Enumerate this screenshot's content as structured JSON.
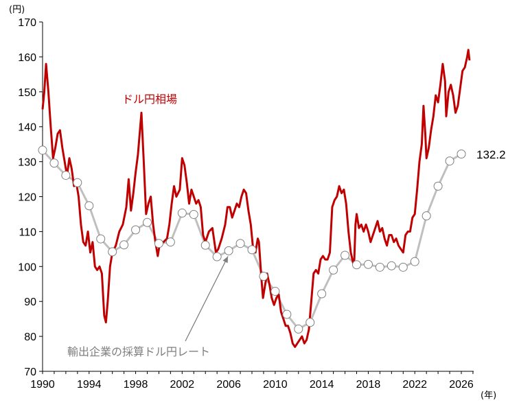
{
  "chart_data": {
    "type": "line",
    "y_unit_label": "(円)",
    "x_unit_label": "(年)",
    "xlim": [
      1990,
      2027
    ],
    "ylim": [
      70,
      170
    ],
    "x_ticks": [
      "1990",
      "1994",
      "1998",
      "2002",
      "2006",
      "2010",
      "2014",
      "2018",
      "2022",
      "2026"
    ],
    "y_ticks": [
      "70",
      "80",
      "90",
      "100",
      "110",
      "120",
      "130",
      "140",
      "150",
      "160",
      "170"
    ],
    "grid": false,
    "colors": {
      "spot": "#c00000",
      "breakeven_line": "#bfbfbf",
      "breakeven_marker_edge": "#7f7f7f",
      "axis": "#000000"
    },
    "series": [
      {
        "name": "ドル円相場",
        "points": [
          [
            1990.0,
            145
          ],
          [
            1990.15,
            150
          ],
          [
            1990.3,
            158
          ],
          [
            1990.5,
            150
          ],
          [
            1990.7,
            140
          ],
          [
            1990.9,
            131
          ],
          [
            1991.1,
            134
          ],
          [
            1991.3,
            138
          ],
          [
            1991.5,
            139
          ],
          [
            1991.7,
            134
          ],
          [
            1991.9,
            130
          ],
          [
            1992.1,
            126
          ],
          [
            1992.3,
            131
          ],
          [
            1992.5,
            128
          ],
          [
            1992.7,
            123
          ],
          [
            1992.9,
            124
          ],
          [
            1993.1,
            120
          ],
          [
            1993.3,
            112
          ],
          [
            1993.5,
            107
          ],
          [
            1993.7,
            106
          ],
          [
            1993.9,
            110
          ],
          [
            1994.1,
            104
          ],
          [
            1994.3,
            107
          ],
          [
            1994.5,
            100
          ],
          [
            1994.7,
            99
          ],
          [
            1994.9,
            100
          ],
          [
            1995.1,
            98
          ],
          [
            1995.3,
            86
          ],
          [
            1995.45,
            84
          ],
          [
            1995.6,
            90
          ],
          [
            1995.8,
            100
          ],
          [
            1996.0,
            104
          ],
          [
            1996.3,
            106
          ],
          [
            1996.6,
            110
          ],
          [
            1996.9,
            112
          ],
          [
            1997.2,
            117
          ],
          [
            1997.4,
            125
          ],
          [
            1997.6,
            116
          ],
          [
            1997.8,
            121
          ],
          [
            1998.0,
            127
          ],
          [
            1998.2,
            132
          ],
          [
            1998.5,
            144
          ],
          [
            1998.7,
            130
          ],
          [
            1998.9,
            115
          ],
          [
            1999.1,
            118
          ],
          [
            1999.3,
            120
          ],
          [
            1999.5,
            112
          ],
          [
            1999.7,
            107
          ],
          [
            1999.9,
            103
          ],
          [
            2000.1,
            107
          ],
          [
            2000.4,
            107
          ],
          [
            2000.7,
            108
          ],
          [
            2000.9,
            112
          ],
          [
            2001.1,
            118
          ],
          [
            2001.3,
            123
          ],
          [
            2001.5,
            120
          ],
          [
            2001.8,
            122
          ],
          [
            2002.0,
            131
          ],
          [
            2002.2,
            129
          ],
          [
            2002.4,
            124
          ],
          [
            2002.6,
            118
          ],
          [
            2002.8,
            122
          ],
          [
            2003.0,
            120
          ],
          [
            2003.2,
            118
          ],
          [
            2003.4,
            119
          ],
          [
            2003.6,
            117
          ],
          [
            2003.8,
            109
          ],
          [
            2004.0,
            107
          ],
          [
            2004.3,
            110
          ],
          [
            2004.6,
            111
          ],
          [
            2004.9,
            104
          ],
          [
            2005.1,
            105
          ],
          [
            2005.4,
            108
          ],
          [
            2005.7,
            112
          ],
          [
            2005.9,
            117
          ],
          [
            2006.1,
            117
          ],
          [
            2006.3,
            114
          ],
          [
            2006.5,
            116
          ],
          [
            2006.7,
            118
          ],
          [
            2006.9,
            117
          ],
          [
            2007.1,
            120
          ],
          [
            2007.3,
            122
          ],
          [
            2007.5,
            121
          ],
          [
            2007.7,
            116
          ],
          [
            2007.9,
            112
          ],
          [
            2008.1,
            105
          ],
          [
            2008.3,
            104
          ],
          [
            2008.5,
            108
          ],
          [
            2008.6,
            107
          ],
          [
            2008.8,
            97
          ],
          [
            2008.95,
            91
          ],
          [
            2009.1,
            94
          ],
          [
            2009.3,
            98
          ],
          [
            2009.5,
            95
          ],
          [
            2009.7,
            91
          ],
          [
            2009.9,
            89
          ],
          [
            2010.1,
            91
          ],
          [
            2010.3,
            92
          ],
          [
            2010.5,
            87
          ],
          [
            2010.7,
            85
          ],
          [
            2010.9,
            83
          ],
          [
            2011.1,
            83
          ],
          [
            2011.3,
            81
          ],
          [
            2011.5,
            78
          ],
          [
            2011.7,
            77
          ],
          [
            2011.9,
            78
          ],
          [
            2012.1,
            79
          ],
          [
            2012.3,
            80
          ],
          [
            2012.5,
            78
          ],
          [
            2012.7,
            79
          ],
          [
            2012.9,
            82
          ],
          [
            2013.1,
            90
          ],
          [
            2013.3,
            98
          ],
          [
            2013.5,
            99
          ],
          [
            2013.7,
            98
          ],
          [
            2013.9,
            102
          ],
          [
            2014.1,
            103
          ],
          [
            2014.3,
            102
          ],
          [
            2014.5,
            102
          ],
          [
            2014.7,
            104
          ],
          [
            2014.9,
            117
          ],
          [
            2015.1,
            119
          ],
          [
            2015.3,
            120
          ],
          [
            2015.5,
            123
          ],
          [
            2015.7,
            121
          ],
          [
            2015.9,
            122
          ],
          [
            2016.1,
            118
          ],
          [
            2016.3,
            110
          ],
          [
            2016.5,
            104
          ],
          [
            2016.7,
            101
          ],
          [
            2016.8,
            102
          ],
          [
            2016.9,
            112
          ],
          [
            2017.0,
            115
          ],
          [
            2017.2,
            111
          ],
          [
            2017.4,
            112
          ],
          [
            2017.6,
            110
          ],
          [
            2017.8,
            112
          ],
          [
            2018.0,
            110
          ],
          [
            2018.2,
            107
          ],
          [
            2018.4,
            109
          ],
          [
            2018.6,
            111
          ],
          [
            2018.8,
            113
          ],
          [
            2019.0,
            110
          ],
          [
            2019.2,
            111
          ],
          [
            2019.4,
            108
          ],
          [
            2019.6,
            106
          ],
          [
            2019.8,
            109
          ],
          [
            2020.0,
            109
          ],
          [
            2020.2,
            107
          ],
          [
            2020.4,
            108
          ],
          [
            2020.6,
            106
          ],
          [
            2020.8,
            105
          ],
          [
            2021.0,
            104
          ],
          [
            2021.2,
            109
          ],
          [
            2021.4,
            110
          ],
          [
            2021.6,
            110
          ],
          [
            2021.8,
            114
          ],
          [
            2022.0,
            115
          ],
          [
            2022.2,
            122
          ],
          [
            2022.4,
            130
          ],
          [
            2022.6,
            135
          ],
          [
            2022.75,
            146
          ],
          [
            2022.9,
            138
          ],
          [
            2023.0,
            131
          ],
          [
            2023.2,
            134
          ],
          [
            2023.4,
            139
          ],
          [
            2023.6,
            143
          ],
          [
            2023.8,
            149
          ],
          [
            2024.0,
            147
          ],
          [
            2024.2,
            152
          ],
          [
            2024.4,
            158
          ],
          [
            2024.6,
            153
          ],
          [
            2024.7,
            143
          ],
          [
            2024.9,
            150
          ],
          [
            2025.1,
            152
          ],
          [
            2025.3,
            149
          ],
          [
            2025.5,
            144
          ],
          [
            2025.7,
            146
          ],
          [
            2025.9,
            151
          ],
          [
            2026.1,
            156
          ],
          [
            2026.3,
            157
          ],
          [
            2026.5,
            160
          ],
          [
            2026.6,
            162
          ],
          [
            2026.7,
            159
          ]
        ]
      },
      {
        "name": "輸出企業の採算ドル円レート",
        "end_label": "132.2",
        "points": [
          [
            1990.0,
            133.3
          ],
          [
            1991.0,
            129.6
          ],
          [
            1992.0,
            126.1
          ],
          [
            1993.0,
            124
          ],
          [
            1994.0,
            117.4
          ],
          [
            1995.0,
            107.9
          ],
          [
            1996.0,
            104.2
          ],
          [
            1997.0,
            106.2
          ],
          [
            1998.0,
            110.5
          ],
          [
            1999.0,
            112.6
          ],
          [
            2000.0,
            106.6
          ],
          [
            2001.0,
            107
          ],
          [
            2002.0,
            115.3
          ],
          [
            2003.0,
            114.9
          ],
          [
            2004.0,
            106.1
          ],
          [
            2005.0,
            102.8
          ],
          [
            2006.0,
            104.5
          ],
          [
            2007.0,
            106.6
          ],
          [
            2008.0,
            104.8
          ],
          [
            2009.0,
            97.2
          ],
          [
            2010.0,
            92.9
          ],
          [
            2011.0,
            86.3
          ],
          [
            2012.0,
            82.1
          ],
          [
            2013.0,
            84
          ],
          [
            2014.0,
            92.2
          ],
          [
            2015.0,
            99
          ],
          [
            2016.0,
            103.2
          ],
          [
            2017.0,
            100.5
          ],
          [
            2018.0,
            100.6
          ],
          [
            2019.0,
            99.8
          ],
          [
            2020.0,
            100.2
          ],
          [
            2021.0,
            99.8
          ],
          [
            2022.0,
            101.4
          ],
          [
            2023.0,
            114.5
          ],
          [
            2024.0,
            123
          ],
          [
            2025.0,
            130.2
          ],
          [
            2026.0,
            132.2
          ]
        ]
      }
    ],
    "annotation": {
      "target": "輸出企業の採算ドル円レート",
      "at": [
        2006.0,
        104.5
      ]
    }
  }
}
